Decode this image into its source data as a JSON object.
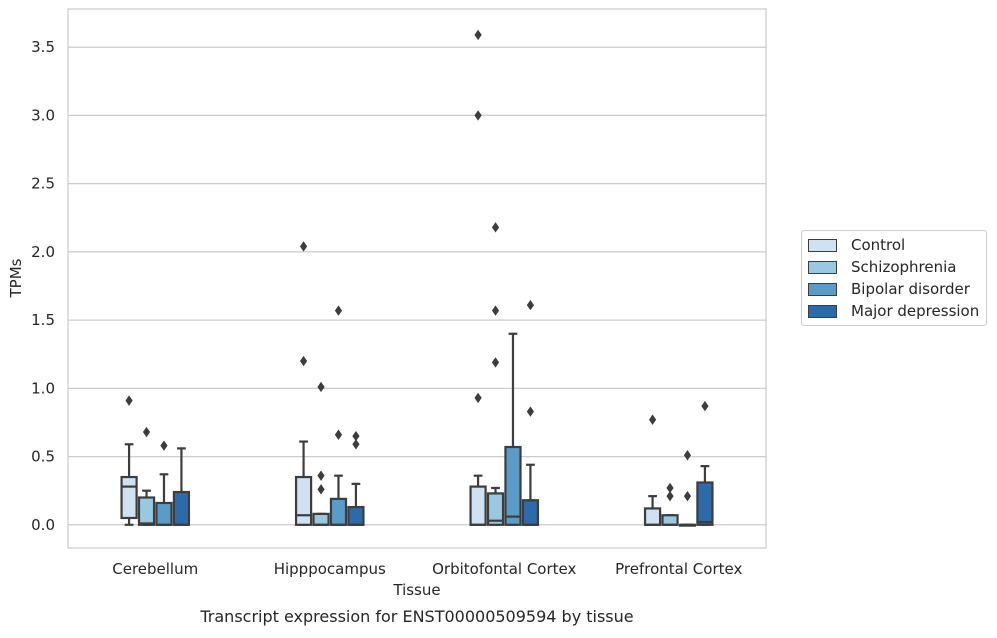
{
  "chart_data": {
    "type": "box",
    "title": "Transcript expression for ENST00000509594 by tissue",
    "xlabel": "Tissue",
    "ylabel": "TPMs",
    "ylim": [
      -0.17,
      3.78
    ],
    "yticks": [
      0.0,
      0.5,
      1.0,
      1.5,
      2.0,
      2.5,
      3.0,
      3.5
    ],
    "ytick_labels": [
      "0.0",
      "0.5",
      "1.0",
      "1.5",
      "2.0",
      "2.5",
      "3.0",
      "3.5"
    ],
    "grid": "horizontal",
    "legend_position": "right",
    "categories": [
      "Cerebellum",
      "Hipppocampus",
      "Orbitofontal Cortex",
      "Prefrontal Cortex"
    ],
    "series": [
      {
        "name": "Control",
        "color": "#d0e1f2",
        "boxes": [
          {
            "whislo": 0.0,
            "q1": 0.05,
            "med": 0.28,
            "q3": 0.35,
            "whishi": 0.59,
            "fliers": [
              0.91
            ]
          },
          {
            "whislo": 0.0,
            "q1": 0.0,
            "med": 0.07,
            "q3": 0.35,
            "whishi": 0.61,
            "fliers": [
              1.2,
              2.04
            ]
          },
          {
            "whislo": 0.0,
            "q1": 0.0,
            "med": 0.0,
            "q3": 0.28,
            "whishi": 0.36,
            "fliers": [
              0.93,
              3.0,
              3.59
            ]
          },
          {
            "whislo": 0.0,
            "q1": 0.0,
            "med": 0.0,
            "q3": 0.12,
            "whishi": 0.21,
            "fliers": [
              0.77
            ]
          }
        ]
      },
      {
        "name": "Schizophrenia",
        "color": "#9ac8e0",
        "boxes": [
          {
            "whislo": 0.0,
            "q1": 0.0,
            "med": 0.01,
            "q3": 0.2,
            "whishi": 0.25,
            "fliers": [
              0.68
            ]
          },
          {
            "whislo": 0.0,
            "q1": 0.0,
            "med": 0.0,
            "q3": 0.08,
            "whishi": 0.08,
            "fliers": [
              0.26,
              0.36,
              1.01
            ]
          },
          {
            "whislo": 0.0,
            "q1": 0.0,
            "med": 0.03,
            "q3": 0.23,
            "whishi": 0.27,
            "fliers": [
              1.19,
              1.57,
              2.18
            ]
          },
          {
            "whislo": 0.0,
            "q1": 0.0,
            "med": 0.0,
            "q3": 0.07,
            "whishi": 0.07,
            "fliers": [
              0.21,
              0.27
            ]
          }
        ]
      },
      {
        "name": "Bipolar disorder",
        "color": "#5b9bc8",
        "boxes": [
          {
            "whislo": 0.0,
            "q1": 0.0,
            "med": 0.0,
            "q3": 0.16,
            "whishi": 0.37,
            "fliers": [
              0.58
            ]
          },
          {
            "whislo": 0.0,
            "q1": 0.0,
            "med": 0.0,
            "q3": 0.19,
            "whishi": 0.36,
            "fliers": [
              0.66,
              1.57
            ]
          },
          {
            "whislo": 0.0,
            "q1": 0.0,
            "med": 0.06,
            "q3": 0.57,
            "whishi": 1.4,
            "fliers": []
          },
          {
            "whislo": 0.0,
            "q1": 0.0,
            "med": 0.0,
            "q3": 0.0,
            "whishi": 0.0,
            "fliers": [
              0.21,
              0.51
            ]
          }
        ]
      },
      {
        "name": "Major depression",
        "color": "#2d6aa9",
        "boxes": [
          {
            "whislo": 0.0,
            "q1": 0.0,
            "med": 0.0,
            "q3": 0.24,
            "whishi": 0.56,
            "fliers": []
          },
          {
            "whislo": 0.0,
            "q1": 0.0,
            "med": 0.0,
            "q3": 0.13,
            "whishi": 0.3,
            "fliers": [
              0.59,
              0.65
            ]
          },
          {
            "whislo": 0.0,
            "q1": 0.0,
            "med": 0.0,
            "q3": 0.18,
            "whishi": 0.44,
            "fliers": [
              0.83,
              1.61
            ]
          },
          {
            "whislo": 0.0,
            "q1": 0.0,
            "med": 0.02,
            "q3": 0.31,
            "whishi": 0.43,
            "fliers": [
              0.87
            ]
          }
        ]
      }
    ]
  }
}
